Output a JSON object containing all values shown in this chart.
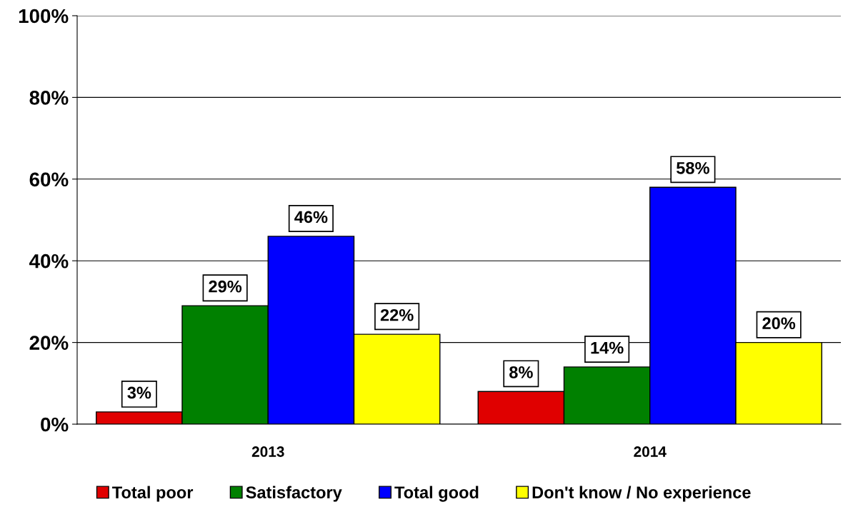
{
  "chart_data": {
    "type": "bar",
    "categories": [
      "2013",
      "2014"
    ],
    "series": [
      {
        "name": "Total poor",
        "color": "#e00000",
        "values": [
          3,
          8
        ],
        "value_labels": [
          "3%",
          "8%"
        ]
      },
      {
        "name": "Satisfactory",
        "color": "#008000",
        "values": [
          29,
          14
        ],
        "value_labels": [
          "29%",
          "14%"
        ]
      },
      {
        "name": "Total good",
        "color": "#0000ff",
        "values": [
          46,
          58
        ],
        "value_labels": [
          "46%",
          "58%"
        ]
      },
      {
        "name": "Don't know / No experience",
        "color": "#ffff00",
        "values": [
          22,
          20
        ],
        "value_labels": [
          "22%",
          "20%"
        ]
      }
    ],
    "ylim": [
      0,
      100
    ],
    "yticks": [
      {
        "value": 0,
        "label": "0%"
      },
      {
        "value": 20,
        "label": "20%"
      },
      {
        "value": 40,
        "label": "40%"
      },
      {
        "value": 60,
        "label": "60%"
      },
      {
        "value": 80,
        "label": "80%"
      },
      {
        "value": 100,
        "label": "100%"
      }
    ],
    "grid": "y",
    "legend": "bottom"
  }
}
